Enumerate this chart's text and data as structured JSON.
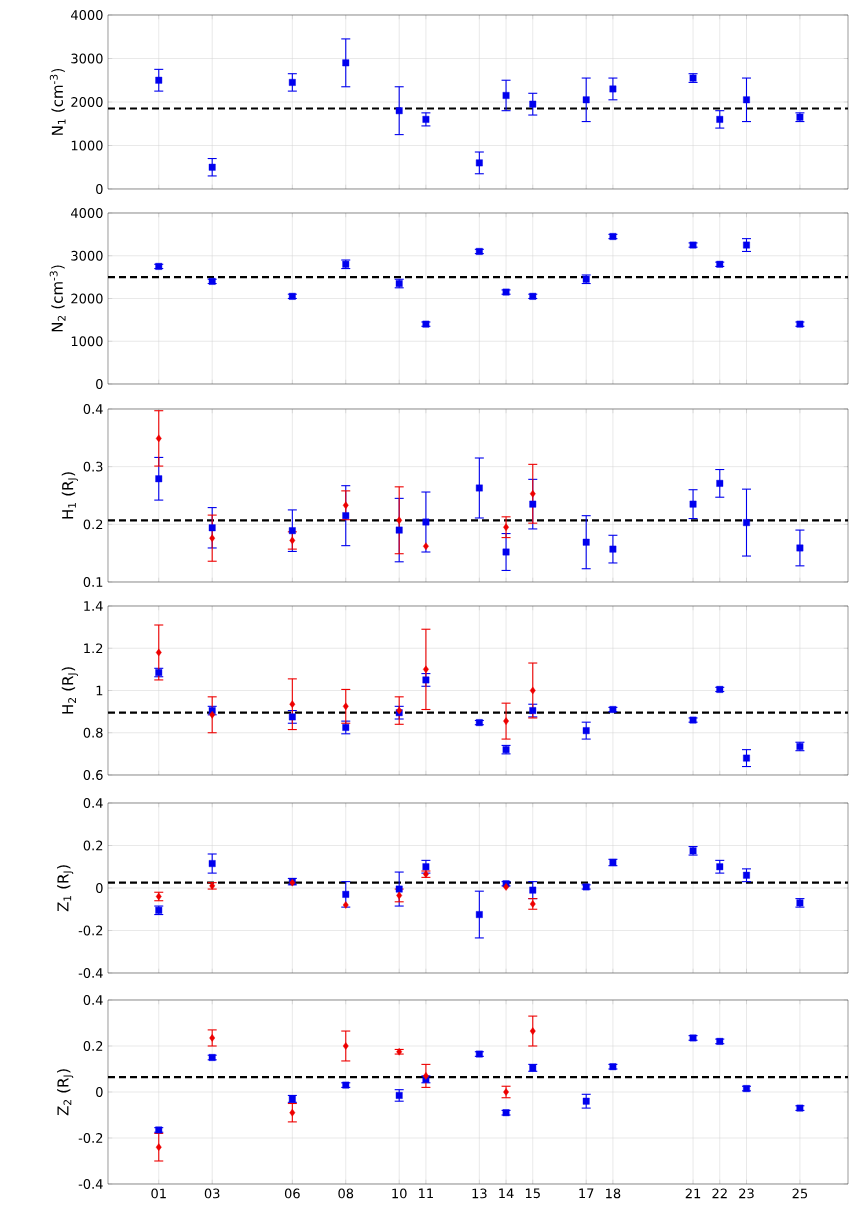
{
  "chart_data": [
    {
      "type": "scatter",
      "ylabel": "N$_{1}$ (cm$^{-3}$)",
      "xlim": [
        -0.9,
        26.8
      ],
      "xticks": [
        {
          "value": 1,
          "label": null
        },
        {
          "value": 3,
          "label": null
        },
        {
          "value": 6,
          "label": null
        },
        {
          "value": 8,
          "label": null
        },
        {
          "value": 10,
          "label": null
        },
        {
          "value": 11,
          "label": null
        },
        {
          "value": 13,
          "label": null
        },
        {
          "value": 14,
          "label": null
        },
        {
          "value": 15,
          "label": null
        },
        {
          "value": 17,
          "label": null
        },
        {
          "value": 18,
          "label": null
        },
        {
          "value": 21,
          "label": null
        },
        {
          "value": 22,
          "label": null
        },
        {
          "value": 23,
          "label": null
        },
        {
          "value": 25,
          "label": null
        }
      ],
      "ylim": [
        0,
        4000
      ],
      "yticks": [
        0,
        1000,
        2000,
        3000,
        4000
      ],
      "grid": true,
      "tick_labels": "y",
      "series": [
        {
          "color": "#0000ee",
          "marker": "square",
          "x": [
            1,
            3,
            6,
            8,
            10,
            11,
            13,
            14,
            15,
            17,
            18,
            21,
            22,
            23,
            25
          ],
          "values": [
            2500,
            500,
            2450,
            2900,
            1800,
            1600,
            600,
            2150,
            1950,
            2050,
            2300,
            2550,
            1600,
            2050,
            1650
          ],
          "errors": [
            250,
            200,
            200,
            550,
            550,
            150,
            250,
            350,
            250,
            500,
            250,
            100,
            200,
            500,
            100
          ]
        }
      ],
      "ref_lines": [
        {
          "axis": "y",
          "value": 1850,
          "color": "#000000",
          "line_style": "dashed"
        }
      ]
    },
    {
      "type": "scatter",
      "ylabel": "N$_{2}$ (cm$^{-3}$)",
      "xlim": [
        -0.9,
        26.8
      ],
      "xticks": [
        {
          "value": 1,
          "label": null
        },
        {
          "value": 3,
          "label": null
        },
        {
          "value": 6,
          "label": null
        },
        {
          "value": 8,
          "label": null
        },
        {
          "value": 10,
          "label": null
        },
        {
          "value": 11,
          "label": null
        },
        {
          "value": 13,
          "label": null
        },
        {
          "value": 14,
          "label": null
        },
        {
          "value": 15,
          "label": null
        },
        {
          "value": 17,
          "label": null
        },
        {
          "value": 18,
          "label": null
        },
        {
          "value": 21,
          "label": null
        },
        {
          "value": 22,
          "label": null
        },
        {
          "value": 23,
          "label": null
        },
        {
          "value": 25,
          "label": null
        }
      ],
      "ylim": [
        0,
        4000
      ],
      "yticks": [
        0,
        1000,
        2000,
        3000,
        4000
      ],
      "grid": true,
      "tick_labels": "y",
      "series": [
        {
          "color": "#0000ee",
          "marker": "square",
          "x": [
            1,
            3,
            6,
            8,
            10,
            11,
            13,
            14,
            15,
            17,
            18,
            21,
            22,
            23,
            25
          ],
          "values": [
            2750,
            2400,
            2050,
            2800,
            2350,
            1400,
            3100,
            2150,
            2050,
            2450,
            3450,
            3250,
            2800,
            3250,
            1400
          ],
          "errors": [
            50,
            50,
            50,
            100,
            100,
            50,
            50,
            50,
            50,
            100,
            50,
            50,
            50,
            150,
            50
          ]
        }
      ],
      "ref_lines": [
        {
          "axis": "y",
          "value": 2500,
          "color": "#000000",
          "line_style": "dashed"
        }
      ]
    },
    {
      "type": "scatter",
      "ylabel": "H$_{1}$ (R$_{J}$)",
      "xlim": [
        -0.9,
        26.8
      ],
      "xticks": [
        {
          "value": 1,
          "label": null
        },
        {
          "value": 3,
          "label": null
        },
        {
          "value": 6,
          "label": null
        },
        {
          "value": 8,
          "label": null
        },
        {
          "value": 10,
          "label": null
        },
        {
          "value": 11,
          "label": null
        },
        {
          "value": 13,
          "label": null
        },
        {
          "value": 14,
          "label": null
        },
        {
          "value": 15,
          "label": null
        },
        {
          "value": 17,
          "label": null
        },
        {
          "value": 18,
          "label": null
        },
        {
          "value": 21,
          "label": null
        },
        {
          "value": 22,
          "label": null
        },
        {
          "value": 23,
          "label": null
        },
        {
          "value": 25,
          "label": null
        }
      ],
      "ylim": [
        0.1,
        0.4
      ],
      "yticks": [
        0.1,
        0.2,
        0.3,
        0.4
      ],
      "grid": true,
      "tick_labels": "y",
      "series": [
        {
          "color": "#0000ee",
          "marker": "square",
          "x": [
            1,
            3,
            6,
            8,
            10,
            11,
            13,
            14,
            15,
            17,
            18,
            21,
            22,
            23,
            25
          ],
          "values": [
            0.279,
            0.194,
            0.189,
            0.215,
            0.19,
            0.204,
            0.263,
            0.152,
            0.235,
            0.169,
            0.157,
            0.235,
            0.271,
            0.203,
            0.159
          ],
          "errors": [
            0.037,
            0.035,
            0.036,
            0.052,
            0.055,
            0.052,
            0.052,
            0.032,
            0.043,
            0.046,
            0.024,
            0.025,
            0.024,
            0.058,
            0.031
          ]
        },
        {
          "color": "#ee0000",
          "marker": "diamond",
          "x": [
            1,
            3,
            6,
            8,
            10,
            11,
            14,
            15
          ],
          "values": [
            0.349,
            0.176,
            0.172,
            0.233,
            0.207,
            0.162,
            0.195,
            0.253
          ],
          "errors": [
            0.048,
            0.04,
            0.015,
            0.025,
            0.058,
            null,
            0.018,
            0.051
          ]
        }
      ],
      "ref_lines": [
        {
          "axis": "y",
          "value": 0.207,
          "color": "#000000",
          "line_style": "dashed"
        }
      ]
    },
    {
      "type": "scatter",
      "ylabel": "H$_{2}$ (R$_{J}$)",
      "xlim": [
        -0.9,
        26.8
      ],
      "xticks": [
        {
          "value": 1,
          "label": null
        },
        {
          "value": 3,
          "label": null
        },
        {
          "value": 6,
          "label": null
        },
        {
          "value": 8,
          "label": null
        },
        {
          "value": 10,
          "label": null
        },
        {
          "value": 11,
          "label": null
        },
        {
          "value": 13,
          "label": null
        },
        {
          "value": 14,
          "label": null
        },
        {
          "value": 15,
          "label": null
        },
        {
          "value": 17,
          "label": null
        },
        {
          "value": 18,
          "label": null
        },
        {
          "value": 21,
          "label": null
        },
        {
          "value": 22,
          "label": null
        },
        {
          "value": 23,
          "label": null
        },
        {
          "value": 25,
          "label": null
        }
      ],
      "ylim": [
        0.6,
        1.4
      ],
      "yticks": [
        0.6,
        0.8,
        1,
        1.2,
        1.4
      ],
      "grid": true,
      "tick_labels": "y",
      "series": [
        {
          "color": "#0000ee",
          "marker": "square",
          "x": [
            1,
            3,
            6,
            8,
            10,
            11,
            13,
            14,
            15,
            17,
            18,
            21,
            22,
            23,
            25
          ],
          "values": [
            1.085,
            0.905,
            0.875,
            0.825,
            0.895,
            1.05,
            0.848,
            0.72,
            0.905,
            0.81,
            0.91,
            0.86,
            1.005,
            0.68,
            0.735
          ],
          "errors": [
            0.02,
            0.02,
            0.03,
            0.03,
            0.03,
            0.03,
            0.01,
            0.02,
            0.03,
            0.04,
            0.01,
            0.01,
            0.01,
            0.04,
            0.02
          ]
        },
        {
          "color": "#ee0000",
          "marker": "diamond",
          "x": [
            1,
            3,
            6,
            8,
            10,
            11,
            14,
            15
          ],
          "values": [
            1.18,
            0.885,
            0.935,
            0.925,
            0.905,
            1.1,
            0.855,
            1.0
          ],
          "errors": [
            0.13,
            0.085,
            0.12,
            0.08,
            0.065,
            0.19,
            0.085,
            0.13
          ]
        }
      ],
      "ref_lines": [
        {
          "axis": "y",
          "value": 0.895,
          "color": "#000000",
          "line_style": "dashed"
        }
      ]
    },
    {
      "type": "scatter",
      "ylabel": "Z$_{1}$ (R$_{J}$)",
      "xlim": [
        -0.9,
        26.8
      ],
      "xticks": [
        {
          "value": 1,
          "label": null
        },
        {
          "value": 3,
          "label": null
        },
        {
          "value": 6,
          "label": null
        },
        {
          "value": 8,
          "label": null
        },
        {
          "value": 10,
          "label": null
        },
        {
          "value": 11,
          "label": null
        },
        {
          "value": 13,
          "label": null
        },
        {
          "value": 14,
          "label": null
        },
        {
          "value": 15,
          "label": null
        },
        {
          "value": 17,
          "label": null
        },
        {
          "value": 18,
          "label": null
        },
        {
          "value": 21,
          "label": null
        },
        {
          "value": 22,
          "label": null
        },
        {
          "value": 23,
          "label": null
        },
        {
          "value": 25,
          "label": null
        }
      ],
      "ylim": [
        -0.4,
        0.4
      ],
      "yticks": [
        -0.4,
        -0.2,
        0,
        0.2,
        0.4
      ],
      "grid": true,
      "tick_labels": "y",
      "series": [
        {
          "color": "#0000ee",
          "marker": "square",
          "x": [
            1,
            3,
            6,
            8,
            10,
            11,
            13,
            14,
            15,
            17,
            18,
            21,
            22,
            23,
            25
          ],
          "values": [
            -0.105,
            0.115,
            0.03,
            -0.03,
            -0.005,
            0.1,
            -0.125,
            0.02,
            -0.01,
            0.005,
            0.12,
            0.175,
            0.1,
            0.06,
            -0.07
          ],
          "errors": [
            0.02,
            0.045,
            0.015,
            0.06,
            0.08,
            0.03,
            0.11,
            0.01,
            0.04,
            0.01,
            0.015,
            0.02,
            0.03,
            0.03,
            0.02
          ]
        },
        {
          "color": "#ee0000",
          "marker": "diamond",
          "x": [
            1,
            3,
            6,
            8,
            10,
            11,
            14,
            15
          ],
          "values": [
            -0.04,
            0.01,
            0.025,
            -0.08,
            -0.035,
            0.065,
            0.005,
            -0.075
          ],
          "errors": [
            0.02,
            0.015,
            null,
            null,
            0.03,
            0.015,
            null,
            0.025
          ]
        }
      ],
      "ref_lines": [
        {
          "axis": "y",
          "value": 0.025,
          "color": "#000000",
          "line_style": "dashed"
        }
      ]
    },
    {
      "type": "scatter",
      "ylabel": "Z$_{2}$ (R$_{J}$)",
      "xlim": [
        -0.9,
        26.8
      ],
      "xticks": [
        {
          "value": 1,
          "label": "01"
        },
        {
          "value": 3,
          "label": "03"
        },
        {
          "value": 6,
          "label": "06"
        },
        {
          "value": 8,
          "label": "08"
        },
        {
          "value": 10,
          "label": "10"
        },
        {
          "value": 11,
          "label": "11"
        },
        {
          "value": 13,
          "label": "13"
        },
        {
          "value": 14,
          "label": "14"
        },
        {
          "value": 15,
          "label": "15"
        },
        {
          "value": 17,
          "label": "17"
        },
        {
          "value": 18,
          "label": "18"
        },
        {
          "value": 21,
          "label": "21"
        },
        {
          "value": 22,
          "label": "22"
        },
        {
          "value": 23,
          "label": "23"
        },
        {
          "value": 25,
          "label": "25"
        }
      ],
      "ylim": [
        -0.4,
        0.4
      ],
      "yticks": [
        -0.4,
        -0.2,
        0,
        0.2,
        0.4
      ],
      "grid": true,
      "series": [
        {
          "color": "#0000ee",
          "marker": "square",
          "x": [
            1,
            3,
            6,
            8,
            10,
            11,
            13,
            14,
            15,
            17,
            18,
            21,
            22,
            23,
            25
          ],
          "values": [
            -0.165,
            0.15,
            -0.03,
            0.03,
            -0.015,
            0.055,
            0.165,
            -0.09,
            0.105,
            -0.04,
            0.11,
            0.235,
            0.22,
            0.015,
            -0.07
          ],
          "errors": [
            0.01,
            0.01,
            0.015,
            0.01,
            0.025,
            0.015,
            0.01,
            0.01,
            0.015,
            0.03,
            0.01,
            0.01,
            0.01,
            0.01,
            0.01
          ]
        },
        {
          "color": "#ee0000",
          "marker": "diamond",
          "x": [
            1,
            3,
            6,
            8,
            10,
            11,
            14,
            15
          ],
          "values": [
            -0.24,
            0.235,
            -0.09,
            0.2,
            0.175,
            0.07,
            0.0,
            0.265
          ],
          "errors": [
            0.06,
            0.035,
            0.04,
            0.065,
            0.01,
            0.05,
            0.025,
            0.065
          ]
        }
      ],
      "ref_lines": [
        {
          "axis": "y",
          "value": 0.065,
          "color": "#000000",
          "line_style": "dashed"
        }
      ]
    }
  ]
}
